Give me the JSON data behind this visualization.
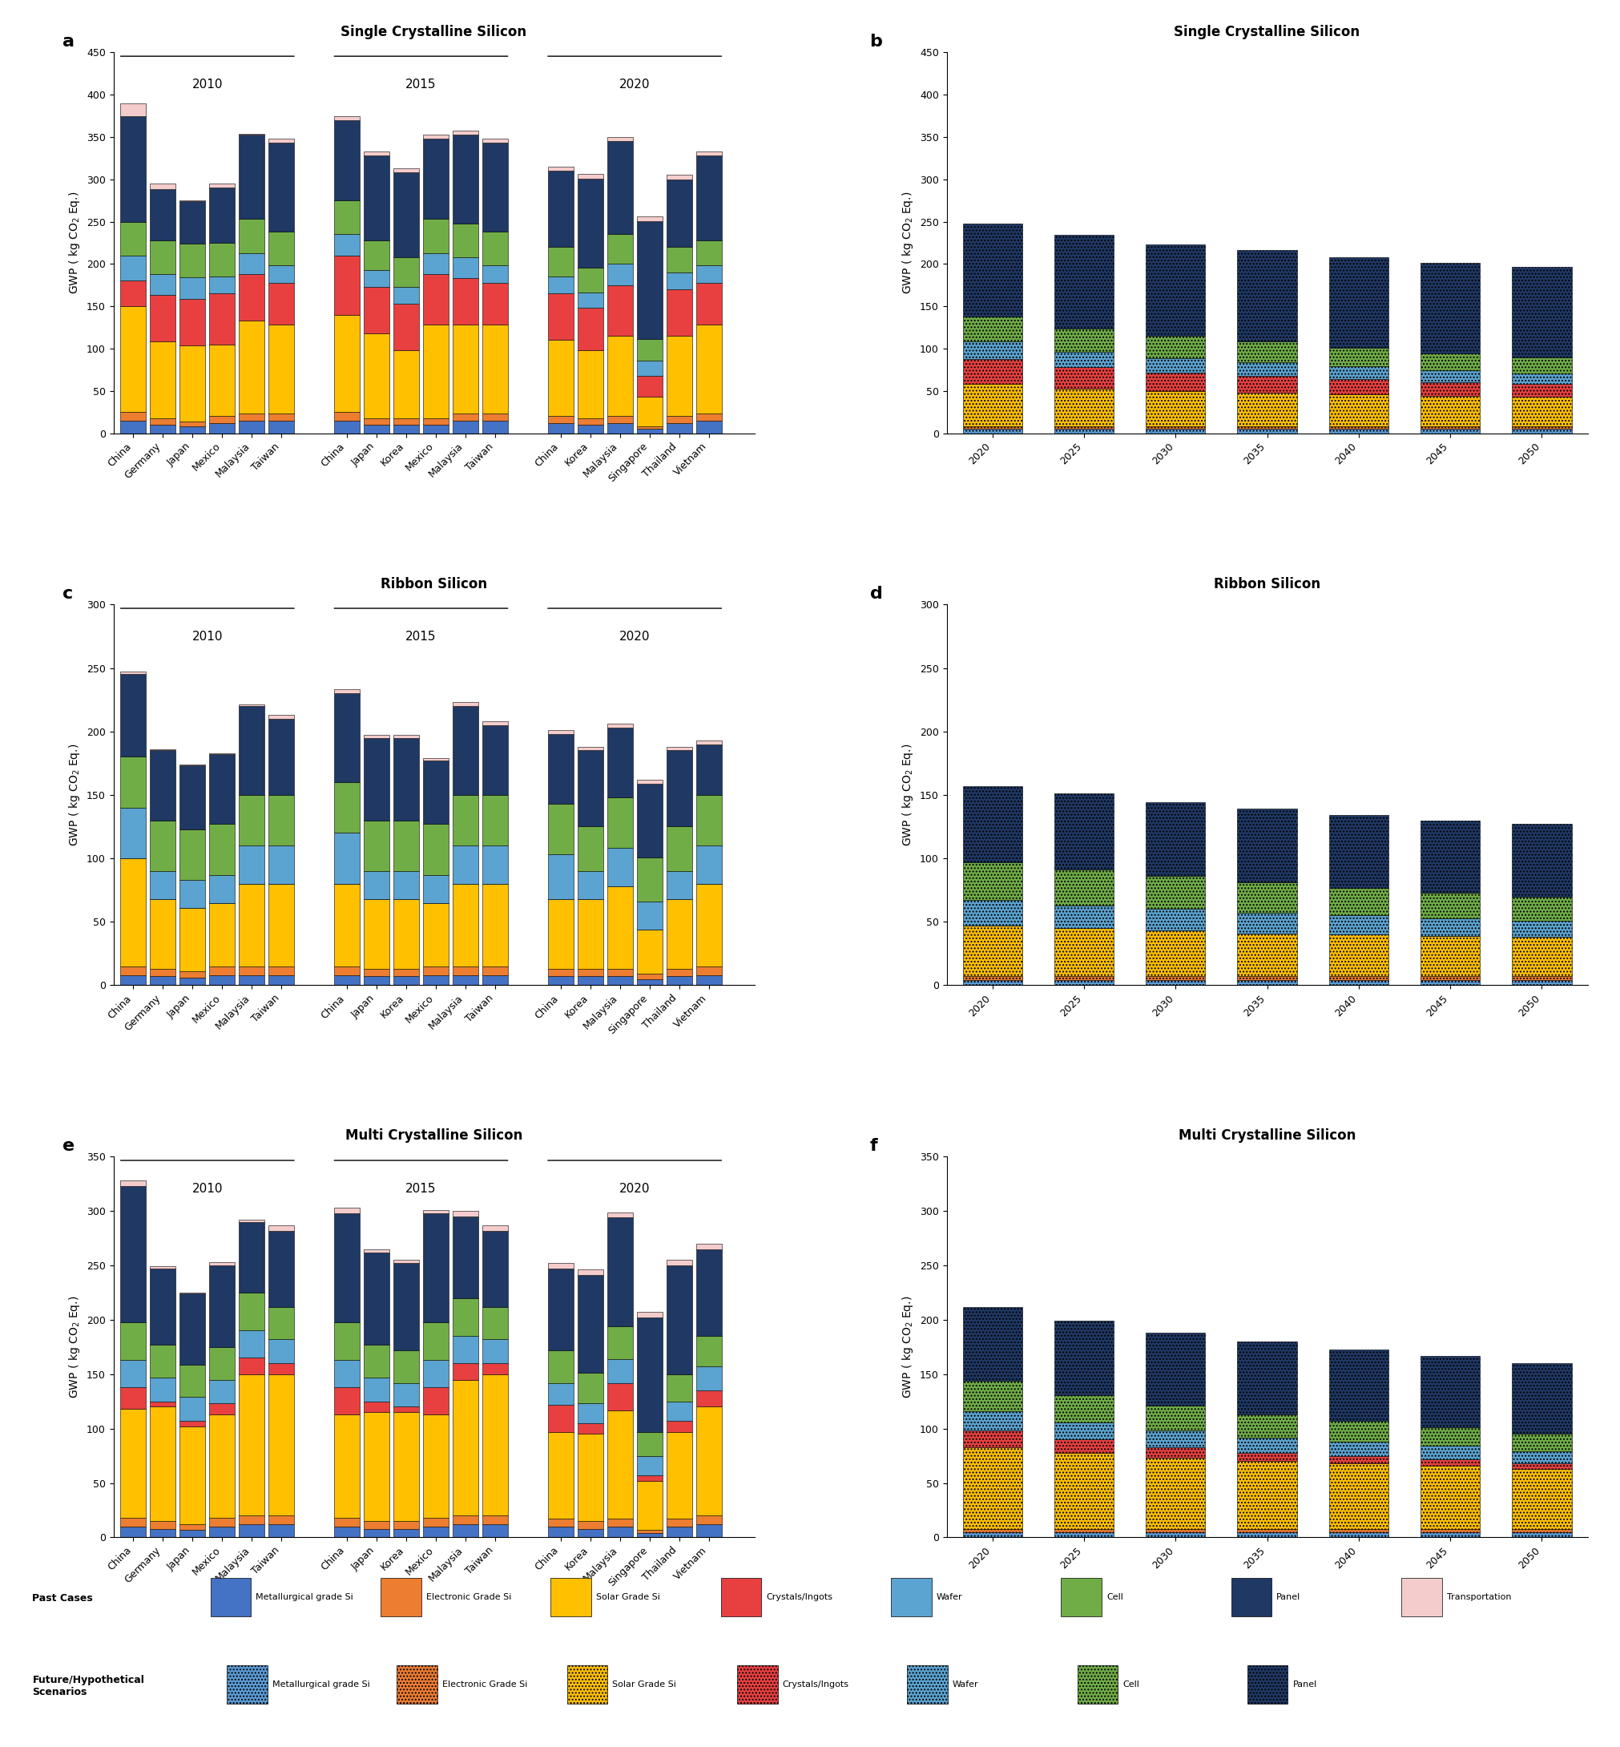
{
  "panel_a": {
    "title": "Single Crystalline Silicon",
    "label": "a",
    "ylim": [
      0,
      450
    ],
    "yticks": [
      0,
      50,
      100,
      150,
      200,
      250,
      300,
      350,
      400,
      450
    ],
    "groups": [
      "2010",
      "2015",
      "2020"
    ],
    "group_labels": [
      [
        "China",
        "Germany",
        "Japan",
        "Mexico",
        "Malaysia",
        "Taiwan"
      ],
      [
        "China",
        "Japan",
        "Korea",
        "Mexico",
        "Malaysia",
        "Taiwan"
      ],
      [
        "China",
        "Korea",
        "Malaysia",
        "Singapore",
        "Thailand",
        "Vietnam"
      ]
    ],
    "data": {
      "Metallurgical": [
        15,
        10,
        8,
        12,
        15,
        15,
        15,
        10,
        10,
        10,
        15,
        15,
        12,
        10,
        12,
        5,
        12,
        15
      ],
      "Electronic": [
        10,
        8,
        6,
        8,
        8,
        8,
        10,
        8,
        8,
        8,
        8,
        8,
        8,
        8,
        8,
        3,
        8,
        8
      ],
      "SolarGrade": [
        125,
        90,
        90,
        85,
        110,
        105,
        115,
        100,
        80,
        110,
        105,
        105,
        90,
        80,
        95,
        35,
        95,
        105
      ],
      "Crystals": [
        30,
        55,
        55,
        60,
        55,
        50,
        70,
        55,
        55,
        60,
        55,
        50,
        55,
        50,
        60,
        25,
        55,
        50
      ],
      "Wafer": [
        30,
        25,
        25,
        20,
        25,
        20,
        25,
        20,
        20,
        25,
        25,
        20,
        20,
        18,
        25,
        18,
        20,
        20
      ],
      "Cell": [
        40,
        40,
        40,
        40,
        40,
        40,
        40,
        35,
        35,
        40,
        40,
        40,
        35,
        30,
        35,
        25,
        30,
        30
      ],
      "Panel": [
        125,
        60,
        50,
        65,
        100,
        105,
        95,
        100,
        100,
        95,
        105,
        105,
        90,
        105,
        110,
        140,
        80,
        100
      ],
      "Transport": [
        15,
        7,
        1,
        5,
        1,
        5,
        5,
        5,
        5,
        5,
        5,
        5,
        5,
        5,
        5,
        5,
        5,
        5
      ]
    }
  },
  "panel_b": {
    "title": "Single Crystalline Silicon",
    "label": "b",
    "ylim": [
      0,
      450
    ],
    "yticks": [
      0,
      50,
      100,
      150,
      200,
      250,
      300,
      350,
      400,
      450
    ],
    "years": [
      "2020",
      "2025",
      "2030",
      "2035",
      "2040",
      "2045",
      "2050"
    ],
    "data": {
      "Metallurgical": [
        5,
        5,
        5,
        5,
        5,
        5,
        5
      ],
      "Electronic": [
        3,
        3,
        3,
        3,
        3,
        3,
        3
      ],
      "SolarGrade": [
        50,
        45,
        42,
        40,
        38,
        36,
        35
      ],
      "Crystals": [
        30,
        25,
        22,
        20,
        18,
        16,
        15
      ],
      "Wafer": [
        20,
        18,
        17,
        16,
        15,
        14,
        13
      ],
      "Cell": [
        30,
        28,
        26,
        24,
        22,
        20,
        19
      ],
      "Panel": [
        110,
        110,
        108,
        108,
        107,
        107,
        107
      ]
    }
  },
  "panel_c": {
    "title": "Ribbon Silicon",
    "label": "c",
    "ylim": [
      0,
      300
    ],
    "yticks": [
      0,
      50,
      100,
      150,
      200,
      250,
      300
    ],
    "groups": [
      "2010",
      "2015",
      "2020"
    ],
    "group_labels": [
      [
        "China",
        "Germany",
        "Japan",
        "Mexico",
        "Malaysia",
        "Taiwan"
      ],
      [
        "China",
        "Japan",
        "Korea",
        "Mexico",
        "Malaysia",
        "Taiwan"
      ],
      [
        "China",
        "Korea",
        "Malaysia",
        "Singapore",
        "Thailand",
        "Vietnam"
      ]
    ],
    "data": {
      "Metallurgical": [
        8,
        7,
        6,
        8,
        8,
        8,
        8,
        7,
        7,
        8,
        8,
        8,
        7,
        7,
        7,
        5,
        7,
        8
      ],
      "Electronic": [
        7,
        6,
        5,
        7,
        7,
        7,
        7,
        6,
        6,
        7,
        7,
        7,
        6,
        6,
        6,
        4,
        6,
        7
      ],
      "SolarGrade": [
        85,
        55,
        50,
        50,
        65,
        65,
        65,
        55,
        55,
        50,
        65,
        65,
        55,
        55,
        65,
        35,
        55,
        65
      ],
      "Crystals": [
        0,
        0,
        0,
        0,
        0,
        0,
        0,
        0,
        0,
        0,
        0,
        0,
        0,
        0,
        0,
        0,
        0,
        0
      ],
      "Wafer": [
        40,
        22,
        22,
        22,
        30,
        30,
        40,
        22,
        22,
        22,
        30,
        30,
        35,
        22,
        30,
        22,
        22,
        30
      ],
      "Cell": [
        40,
        40,
        40,
        40,
        40,
        40,
        40,
        40,
        40,
        40,
        40,
        40,
        40,
        35,
        40,
        35,
        35,
        40
      ],
      "Panel": [
        65,
        55,
        50,
        55,
        70,
        60,
        70,
        65,
        65,
        50,
        70,
        55,
        55,
        60,
        55,
        58,
        60,
        40
      ],
      "Transport": [
        2,
        1,
        1,
        1,
        1,
        3,
        3,
        2,
        2,
        2,
        3,
        3,
        3,
        3,
        3,
        3,
        3,
        3
      ]
    }
  },
  "panel_d": {
    "title": "Ribbon Silicon",
    "label": "d",
    "ylim": [
      0,
      300
    ],
    "yticks": [
      0,
      50,
      100,
      150,
      200,
      250,
      300
    ],
    "years": [
      "2020",
      "2025",
      "2030",
      "2035",
      "2040",
      "2045",
      "2050"
    ],
    "data": {
      "Metallurgical": [
        4,
        4,
        4,
        4,
        4,
        4,
        4
      ],
      "Electronic": [
        3,
        3,
        3,
        3,
        3,
        3,
        3
      ],
      "SolarGrade": [
        40,
        38,
        36,
        34,
        33,
        32,
        31
      ],
      "Crystals": [
        0,
        0,
        0,
        0,
        0,
        0,
        0
      ],
      "Wafer": [
        20,
        18,
        17,
        16,
        15,
        14,
        13
      ],
      "Cell": [
        30,
        28,
        26,
        24,
        22,
        20,
        19
      ],
      "Panel": [
        60,
        60,
        58,
        58,
        57,
        57,
        57
      ]
    }
  },
  "panel_e": {
    "title": "Multi Crystalline Silicon",
    "label": "e",
    "ylim": [
      0,
      350
    ],
    "yticks": [
      0,
      50,
      100,
      150,
      200,
      250,
      300,
      350
    ],
    "groups": [
      "2010",
      "2015",
      "2020"
    ],
    "group_labels": [
      [
        "China",
        "Germany",
        "Japan",
        "Mexico",
        "Malaysia",
        "Taiwan"
      ],
      [
        "China",
        "Japan",
        "Korea",
        "Mexico",
        "Malaysia",
        "Taiwan"
      ],
      [
        "China",
        "Korea",
        "Malaysia",
        "Singapore",
        "Thailand",
        "Vietnam"
      ]
    ],
    "data": {
      "Metallurgical": [
        10,
        8,
        7,
        10,
        12,
        12,
        10,
        8,
        8,
        10,
        12,
        12,
        10,
        8,
        10,
        4,
        10,
        12
      ],
      "Electronic": [
        8,
        7,
        5,
        8,
        8,
        8,
        8,
        7,
        7,
        8,
        8,
        8,
        7,
        7,
        7,
        3,
        7,
        8
      ],
      "SolarGrade": [
        100,
        105,
        90,
        95,
        130,
        130,
        95,
        100,
        100,
        95,
        125,
        130,
        80,
        80,
        100,
        45,
        80,
        100
      ],
      "Crystals": [
        20,
        5,
        5,
        10,
        15,
        10,
        25,
        10,
        5,
        25,
        15,
        10,
        25,
        10,
        25,
        5,
        10,
        15
      ],
      "Wafer": [
        25,
        22,
        22,
        22,
        25,
        22,
        25,
        22,
        22,
        25,
        25,
        22,
        20,
        18,
        22,
        18,
        18,
        22
      ],
      "Cell": [
        35,
        30,
        30,
        30,
        35,
        30,
        35,
        30,
        30,
        35,
        35,
        30,
        30,
        28,
        30,
        22,
        25,
        28
      ],
      "Panel": [
        125,
        70,
        65,
        75,
        65,
        70,
        100,
        85,
        80,
        100,
        75,
        70,
        75,
        90,
        100,
        105,
        100,
        80
      ],
      "Transport": [
        5,
        2,
        1,
        3,
        2,
        5,
        5,
        3,
        3,
        3,
        5,
        5,
        5,
        5,
        5,
        5,
        5,
        5
      ]
    }
  },
  "panel_f": {
    "title": "Multi Crystalline Silicon",
    "label": "f",
    "ylim": [
      0,
      350
    ],
    "yticks": [
      0,
      50,
      100,
      150,
      200,
      250,
      300,
      350
    ],
    "years": [
      "2020",
      "2025",
      "2030",
      "2035",
      "2040",
      "2045",
      "2050"
    ],
    "data": {
      "Metallurgical": [
        5,
        5,
        5,
        5,
        5,
        5,
        5
      ],
      "Electronic": [
        3,
        3,
        3,
        3,
        3,
        3,
        3
      ],
      "SolarGrade": [
        75,
        70,
        65,
        62,
        60,
        58,
        55
      ],
      "Crystals": [
        15,
        12,
        10,
        8,
        7,
        6,
        5
      ],
      "Wafer": [
        18,
        16,
        15,
        14,
        13,
        12,
        11
      ],
      "Cell": [
        28,
        25,
        23,
        21,
        19,
        17,
        16
      ],
      "Panel": [
        68,
        68,
        67,
        67,
        66,
        66,
        65
      ]
    }
  },
  "colors": {
    "past": {
      "Metallurgical": "#4472C4",
      "Electronic": "#ED7D31",
      "SolarGrade": "#FFC000",
      "Crystals": "#FF0000",
      "Wafer": "#5BA3D0",
      "Cell": "#70AD47",
      "Panel": "#1F3864",
      "Transport": "#F4CCCC"
    },
    "future": {
      "Metallurgical": "#5B9BD5",
      "Electronic": "#ED7D31",
      "SolarGrade": "#FFC000",
      "Crystals": "#FF0000",
      "Wafer": "#5BA3D0",
      "Cell": "#70AD47",
      "Panel": "#1F3864"
    }
  }
}
